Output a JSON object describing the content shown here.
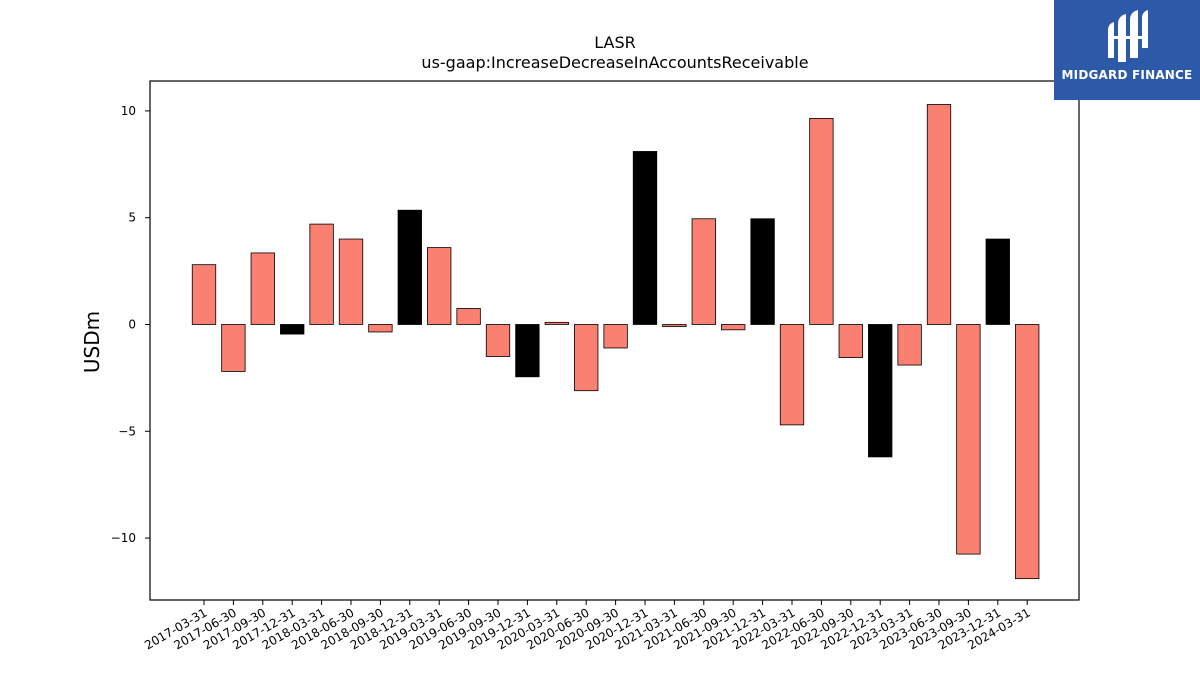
{
  "chart_data": {
    "type": "bar",
    "title": "LASR",
    "subtitle": "us-gaap:IncreaseDecreaseInAccountsReceivable",
    "xlabel": "",
    "ylabel": "USDm",
    "ylim": [
      -12.9,
      11.4
    ],
    "yticks": [
      10,
      5,
      0,
      -5,
      -10
    ],
    "ytick_labels": [
      "10",
      "5",
      "0",
      "−5",
      "−10"
    ],
    "grid": false,
    "legend": "none",
    "categories": [
      "2017-03-31",
      "2017-06-30",
      "2017-09-30",
      "2017-12-31",
      "2018-03-31",
      "2018-06-30",
      "2018-09-30",
      "2018-12-31",
      "2019-03-31",
      "2019-06-30",
      "2019-09-30",
      "2019-12-31",
      "2020-03-31",
      "2020-06-30",
      "2020-09-30",
      "2020-12-31",
      "2021-03-31",
      "2021-06-30",
      "2021-09-30",
      "2021-12-31",
      "2022-03-31",
      "2022-06-30",
      "2022-09-30",
      "2022-12-31",
      "2023-03-31",
      "2023-06-30",
      "2023-09-30",
      "2023-12-31",
      "2024-03-31"
    ],
    "values": [
      2.8,
      -2.2,
      3.35,
      -0.45,
      4.7,
      4.0,
      -0.35,
      5.35,
      3.6,
      0.75,
      -1.5,
      -2.45,
      0.1,
      -3.1,
      -1.1,
      8.1,
      -0.1,
      4.95,
      -0.25,
      4.95,
      -4.7,
      9.65,
      -1.55,
      -6.2,
      -1.9,
      10.3,
      -10.75,
      4.0,
      -11.9
    ],
    "colors": {
      "quarter": "#fa8072",
      "year_end": "#000000",
      "edge": "#000000"
    },
    "bar_colors": [
      "quarter",
      "quarter",
      "quarter",
      "year_end",
      "quarter",
      "quarter",
      "quarter",
      "year_end",
      "quarter",
      "quarter",
      "quarter",
      "year_end",
      "quarter",
      "quarter",
      "quarter",
      "year_end",
      "quarter",
      "quarter",
      "quarter",
      "year_end",
      "quarter",
      "quarter",
      "quarter",
      "year_end",
      "quarter",
      "quarter",
      "quarter",
      "year_end",
      "quarter"
    ]
  },
  "logo": {
    "text": "MIDGARD FINANCE",
    "icon": "midgard-logo-icon",
    "background": "#2d5aa8"
  }
}
